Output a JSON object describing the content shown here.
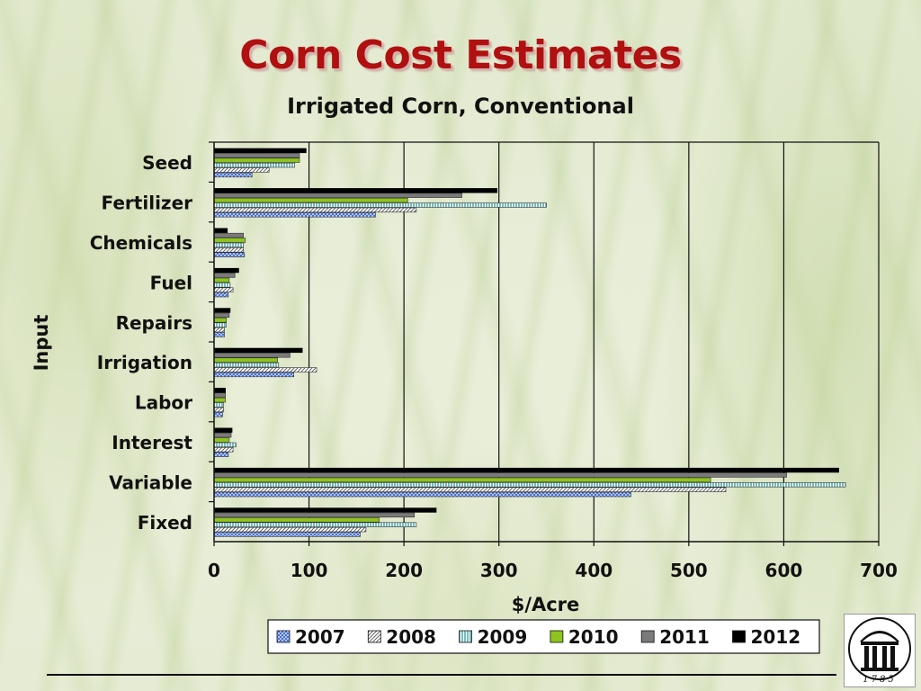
{
  "page": {
    "title": "Corn Cost Estimates",
    "subtitle": "Irrigated Corn, Conventional"
  },
  "chart_data": {
    "type": "bar",
    "orientation": "horizontal",
    "title": "Irrigated Corn, Conventional",
    "xlabel": "$/Acre",
    "ylabel": "Input",
    "xlim": [
      0,
      700
    ],
    "xticks": [
      0,
      100,
      200,
      300,
      400,
      500,
      600,
      700
    ],
    "grid": true,
    "legend_position": "bottom",
    "categories": [
      "Seed",
      "Fertilizer",
      "Chemicals",
      "Fuel",
      "Repairs",
      "Irrigation",
      "Labor",
      "Interest",
      "Variable",
      "Fixed"
    ],
    "series": [
      {
        "name": "2007",
        "color": "#5b7fd6",
        "pattern": "crosshatch-blue",
        "values": [
          40,
          170,
          32,
          15,
          11,
          84,
          9,
          15,
          439,
          154
        ]
      },
      {
        "name": "2008",
        "color": "#ffffff",
        "pattern": "diagonal-gray",
        "values": [
          58,
          213,
          31,
          20,
          11,
          108,
          10,
          20,
          539,
          160
        ]
      },
      {
        "name": "2009",
        "color": "#ffffff",
        "pattern": "vertical-teal",
        "values": [
          85,
          350,
          31,
          17,
          13,
          68,
          10,
          23,
          665,
          213
        ]
      },
      {
        "name": "2010",
        "color": "#8fc31f",
        "pattern": "solid",
        "values": [
          90,
          204,
          33,
          16,
          13,
          67,
          12,
          16,
          523,
          174
        ]
      },
      {
        "name": "2011",
        "color": "#7a7a7a",
        "pattern": "solid",
        "values": [
          90,
          261,
          31,
          22,
          16,
          80,
          12,
          18,
          603,
          211
        ]
      },
      {
        "name": "2012",
        "color": "#000000",
        "pattern": "solid",
        "values": [
          97,
          298,
          14,
          26,
          17,
          93,
          12,
          19,
          658,
          234
        ]
      }
    ]
  },
  "logo": {
    "text": "1785",
    "icon": "arch-columns-icon"
  }
}
